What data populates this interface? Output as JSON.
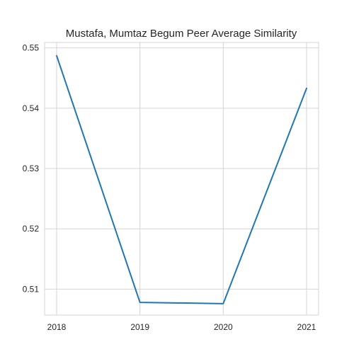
{
  "chart_data": {
    "type": "line",
    "title": "Mustafa, Mumtaz Begum Peer Average Similarity",
    "xlabel": "",
    "ylabel": "",
    "grid": true,
    "x": [
      "2018",
      "2019",
      "2020",
      "2021"
    ],
    "series": [
      {
        "name": "Peer Average Similarity",
        "values": [
          0.5487,
          0.5078,
          0.5076,
          0.5433
        ]
      }
    ],
    "ylim": [
      0.5057,
      0.5509
    ],
    "yticks": [
      "0.51",
      "0.52",
      "0.53",
      "0.54",
      "0.55"
    ],
    "colors": {
      "line": "#1f77b4",
      "grid": "#d4d4d4",
      "axes": "#d4d4d4"
    }
  }
}
